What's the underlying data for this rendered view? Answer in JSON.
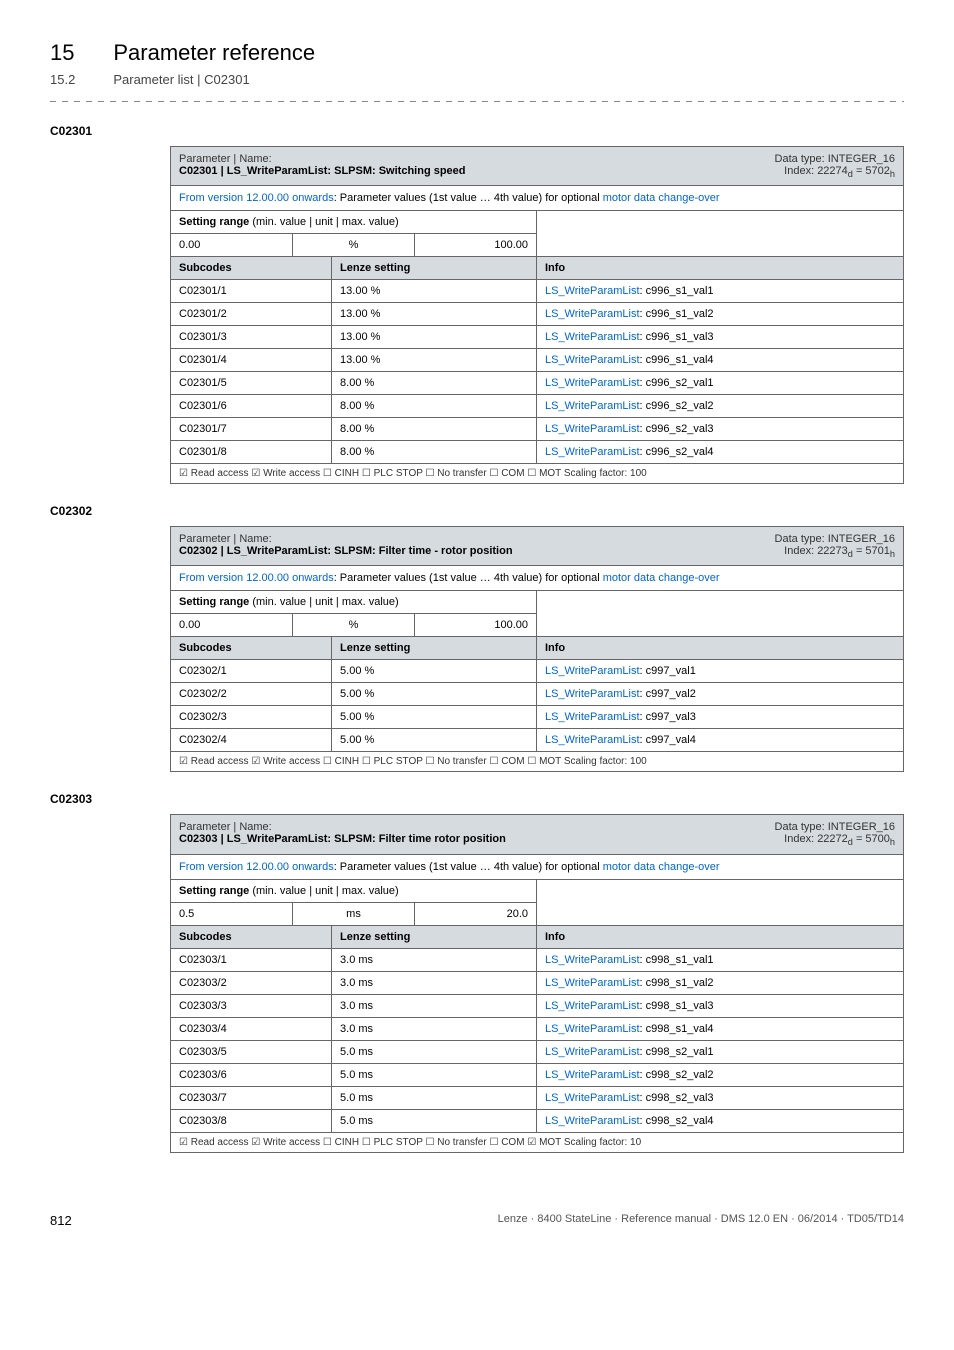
{
  "header": {
    "chapter_num": "15",
    "chapter_title": "Parameter reference",
    "section_num": "15.2",
    "section_title": "Parameter list | C02301"
  },
  "blocks": [
    {
      "code": "C02301",
      "name_line1": "Parameter | Name:",
      "name_line2": "C02301 | LS_WriteParamList: SLPSM: Switching speed",
      "datatype_line1": "Data type: INTEGER_16",
      "datatype_line2": "Index: 22274",
      "datatype_suffix": " = 5702",
      "link_prefix": "From version 12.00.00 onwards",
      "link_mid": ": Parameter values (1st value … 4th value) for optional ",
      "link_suffix": "motor data change-over",
      "range_label": "Setting range",
      "range_sub": " (min. value | unit | max. value)",
      "range_min": "0.00",
      "range_unit": "%",
      "range_max": "100.00",
      "sub_hdr": "Subcodes",
      "lenze_hdr": "Lenze setting",
      "info_hdr": "Info",
      "rows": [
        {
          "sub": "C02301/1",
          "lenze": "13.00 %",
          "info_link": "LS_WriteParamList",
          "info_rest": ": c996_s1_val1"
        },
        {
          "sub": "C02301/2",
          "lenze": "13.00 %",
          "info_link": "LS_WriteParamList",
          "info_rest": ": c996_s1_val2"
        },
        {
          "sub": "C02301/3",
          "lenze": "13.00 %",
          "info_link": "LS_WriteParamList",
          "info_rest": ": c996_s1_val3"
        },
        {
          "sub": "C02301/4",
          "lenze": "13.00 %",
          "info_link": "LS_WriteParamList",
          "info_rest": ": c996_s1_val4"
        },
        {
          "sub": "C02301/5",
          "lenze": "8.00 %",
          "info_link": "LS_WriteParamList",
          "info_rest": ": c996_s2_val1"
        },
        {
          "sub": "C02301/6",
          "lenze": "8.00 %",
          "info_link": "LS_WriteParamList",
          "info_rest": ": c996_s2_val2"
        },
        {
          "sub": "C02301/7",
          "lenze": "8.00 %",
          "info_link": "LS_WriteParamList",
          "info_rest": ": c996_s2_val3"
        },
        {
          "sub": "C02301/8",
          "lenze": "8.00 %",
          "info_link": "LS_WriteParamList",
          "info_rest": ": c996_s2_val4"
        }
      ],
      "footer": "☑ Read access   ☑ Write access   ☐ CINH   ☐ PLC STOP   ☐ No transfer   ☐ COM   ☐ MOT     Scaling factor: 100"
    },
    {
      "code": "C02302",
      "name_line1": "Parameter | Name:",
      "name_line2": "C02302 | LS_WriteParamList: SLPSM: Filter time - rotor position",
      "datatype_line1": "Data type: INTEGER_16",
      "datatype_line2": "Index: 22273",
      "datatype_suffix": " = 5701",
      "link_prefix": "From version 12.00.00 onwards",
      "link_mid": ": Parameter values (1st value … 4th value) for optional ",
      "link_suffix": "motor data change-over",
      "range_label": "Setting range",
      "range_sub": " (min. value | unit | max. value)",
      "range_min": "0.00",
      "range_unit": "%",
      "range_max": "100.00",
      "sub_hdr": "Subcodes",
      "lenze_hdr": "Lenze setting",
      "info_hdr": "Info",
      "rows": [
        {
          "sub": "C02302/1",
          "lenze": "5.00 %",
          "info_link": "LS_WriteParamList",
          "info_rest": ": c997_val1"
        },
        {
          "sub": "C02302/2",
          "lenze": "5.00 %",
          "info_link": "LS_WriteParamList",
          "info_rest": ": c997_val2"
        },
        {
          "sub": "C02302/3",
          "lenze": "5.00 %",
          "info_link": "LS_WriteParamList",
          "info_rest": ": c997_val3"
        },
        {
          "sub": "C02302/4",
          "lenze": "5.00 %",
          "info_link": "LS_WriteParamList",
          "info_rest": ": c997_val4"
        }
      ],
      "footer": "☑ Read access   ☑ Write access   ☐ CINH   ☐ PLC STOP   ☐ No transfer   ☐ COM   ☐ MOT     Scaling factor: 100"
    },
    {
      "code": "C02303",
      "name_line1": "Parameter | Name:",
      "name_line2": "C02303 | LS_WriteParamList: SLPSM: Filter time rotor position",
      "datatype_line1": "Data type: INTEGER_16",
      "datatype_line2": "Index: 22272",
      "datatype_suffix": " = 5700",
      "link_prefix": "From version 12.00.00 onwards",
      "link_mid": ": Parameter values (1st value … 4th value) for optional ",
      "link_suffix": "motor data change-over",
      "range_label": "Setting range",
      "range_sub": " (min. value | unit | max. value)",
      "range_min": "0.5",
      "range_unit": "ms",
      "range_max": "20.0",
      "sub_hdr": "Subcodes",
      "lenze_hdr": "Lenze setting",
      "info_hdr": "Info",
      "rows": [
        {
          "sub": "C02303/1",
          "lenze": "3.0 ms",
          "info_link": "LS_WriteParamList",
          "info_rest": ": c998_s1_val1"
        },
        {
          "sub": "C02303/2",
          "lenze": "3.0 ms",
          "info_link": "LS_WriteParamList",
          "info_rest": ": c998_s1_val2"
        },
        {
          "sub": "C02303/3",
          "lenze": "3.0 ms",
          "info_link": "LS_WriteParamList",
          "info_rest": ": c998_s1_val3"
        },
        {
          "sub": "C02303/4",
          "lenze": "3.0 ms",
          "info_link": "LS_WriteParamList",
          "info_rest": ": c998_s1_val4"
        },
        {
          "sub": "C02303/5",
          "lenze": "5.0 ms",
          "info_link": "LS_WriteParamList",
          "info_rest": ": c998_s2_val1"
        },
        {
          "sub": "C02303/6",
          "lenze": "5.0 ms",
          "info_link": "LS_WriteParamList",
          "info_rest": ": c998_s2_val2"
        },
        {
          "sub": "C02303/7",
          "lenze": "5.0 ms",
          "info_link": "LS_WriteParamList",
          "info_rest": ": c998_s2_val3"
        },
        {
          "sub": "C02303/8",
          "lenze": "5.0 ms",
          "info_link": "LS_WriteParamList",
          "info_rest": ": c998_s2_val4"
        }
      ],
      "footer": "☑ Read access   ☑ Write access   ☐ CINH   ☐ PLC STOP   ☐ No transfer   ☐ COM   ☑ MOT     Scaling factor: 10"
    }
  ],
  "footer": {
    "page": "812",
    "text": "Lenze · 8400 StateLine · Reference manual · DMS 12.0 EN · 06/2014 · TD05/TD14"
  }
}
